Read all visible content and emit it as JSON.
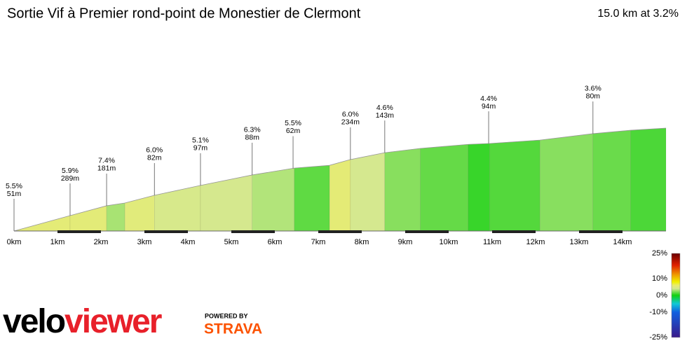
{
  "chart_data": {
    "type": "profile",
    "title": "Sortie Vif à Premier rond-point de Monestier de Clermont",
    "summary": "15.0 km at 3.2%",
    "x": [
      0,
      1.29,
      2.13,
      2.55,
      3.23,
      4.29,
      5.48,
      6.45,
      7.26,
      7.74,
      8.53,
      9.35,
      10.45,
      10.94,
      12.1,
      13.32,
      14.19,
      15
    ],
    "elevation": [
      320,
      392,
      438,
      451,
      487,
      533,
      582,
      614,
      627,
      654,
      686,
      706,
      725,
      729,
      745,
      775,
      791,
      801
    ],
    "xlim": [
      0,
      15
    ],
    "xticks": [
      {
        "value": 0,
        "label": "0km"
      },
      {
        "value": 1,
        "label": "1km"
      },
      {
        "value": 2,
        "label": "2km"
      },
      {
        "value": 3,
        "label": "3km"
      },
      {
        "value": 4,
        "label": "4km"
      },
      {
        "value": 5,
        "label": "5km"
      },
      {
        "value": 6,
        "label": "6km"
      },
      {
        "value": 7,
        "label": "7km"
      },
      {
        "value": 8,
        "label": "8km"
      },
      {
        "value": 9,
        "label": "9km"
      },
      {
        "value": 10,
        "label": "10km"
      },
      {
        "value": 11,
        "label": "11km"
      },
      {
        "value": 12,
        "label": "12km"
      },
      {
        "value": 13,
        "label": "13km"
      },
      {
        "value": 14,
        "label": "14km"
      }
    ],
    "annotations": [
      {
        "x": 0,
        "grade": "5.5%",
        "length": "51m"
      },
      {
        "x": 1.29,
        "grade": "5.9%",
        "length": "289m"
      },
      {
        "x": 2.13,
        "grade": "7.4%",
        "length": "181m"
      },
      {
        "x": 3.23,
        "grade": "6.0%",
        "length": "82m"
      },
      {
        "x": 4.29,
        "grade": "5.1%",
        "length": "97m"
      },
      {
        "x": 5.48,
        "grade": "6.3%",
        "length": "88m"
      },
      {
        "x": 6.42,
        "grade": "5.5%",
        "length": "62m"
      },
      {
        "x": 7.74,
        "grade": "6.0%",
        "length": "234m"
      },
      {
        "x": 8.53,
        "grade": "4.6%",
        "length": "143m"
      },
      {
        "x": 10.92,
        "grade": "4.4%",
        "length": "94m"
      },
      {
        "x": 13.32,
        "grade": "3.6%",
        "length": "80m"
      }
    ],
    "colorbar": {
      "ylim": [
        -25,
        25
      ],
      "ticks": [
        {
          "value": 25,
          "label": "25%"
        },
        {
          "value": 10,
          "label": "10%"
        },
        {
          "value": 0,
          "label": "0%"
        },
        {
          "value": -10,
          "label": "-10%"
        },
        {
          "value": -25,
          "label": "-25%"
        }
      ],
      "stops": [
        {
          "value": -25,
          "color": "#3a1a8a"
        },
        {
          "value": -10,
          "color": "#1060e0"
        },
        {
          "value": -5,
          "color": "#10c8d8"
        },
        {
          "value": 0,
          "color": "#10d010"
        },
        {
          "value": 4,
          "color": "#d4e890"
        },
        {
          "value": 6,
          "color": "#e8ec70"
        },
        {
          "value": 8,
          "color": "#f0f000"
        },
        {
          "value": 12,
          "color": "#f0a000"
        },
        {
          "value": 18,
          "color": "#e02000"
        },
        {
          "value": 25,
          "color": "#6a0000"
        }
      ]
    },
    "logo": {
      "parts": [
        "velo",
        "viewer"
      ],
      "powered": "POWERED BY",
      "brand": "STRAVA"
    }
  }
}
